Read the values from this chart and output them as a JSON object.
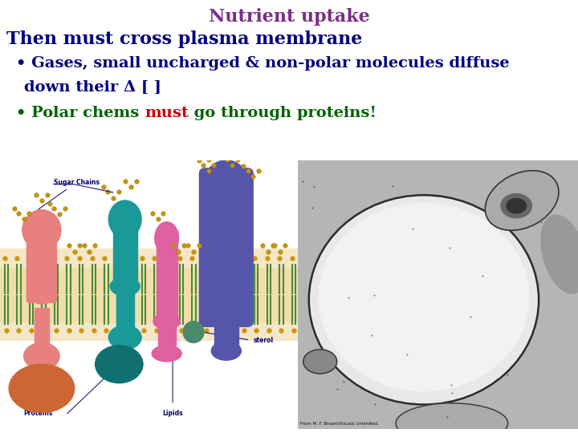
{
  "title": "Nutrient uptake",
  "title_color": "#7B2D8B",
  "title_fontsize": 16,
  "line1_text": "Then must cross plasma membrane",
  "line1_color": "#000080",
  "line1_fontsize": 16,
  "bullet1_prefix": "• Gases, small uncharged & non-polar molecules diffuse",
  "bullet1_color": "#000080",
  "bullet1_fontsize": 14,
  "bullet1_cont": "down their Δ [ ]",
  "bullet1_cont_color": "#000080",
  "bullet1_cont_fontsize": 14,
  "bullet2_part1": "• Polar chems ",
  "bullet2_part2": "must",
  "bullet2_part3": " go through proteins!",
  "bullet2_color_1": "#006400",
  "bullet2_color_2": "#cc0000",
  "bullet2_color_3": "#006400",
  "bullet2_fontsize": 14,
  "bg_color": "#ffffff",
  "membrane_bg": "#f5e6c8",
  "membrane_band_color": "#f0dca0",
  "lipid_tail_color": "#4a8a3a",
  "lipid_head_color": "#c8960a",
  "protein1_color": "#E88080",
  "protein1_bottom_color": "#cc6633",
  "protein2_color": "#1a9999",
  "protein2_bottom_color": "#107070",
  "protein3_color": "#e060a0",
  "protein4_color": "#5555aa",
  "sterol_color": "#4a8a6a",
  "sugar_color": "#c8960a",
  "label_color": "#000066"
}
